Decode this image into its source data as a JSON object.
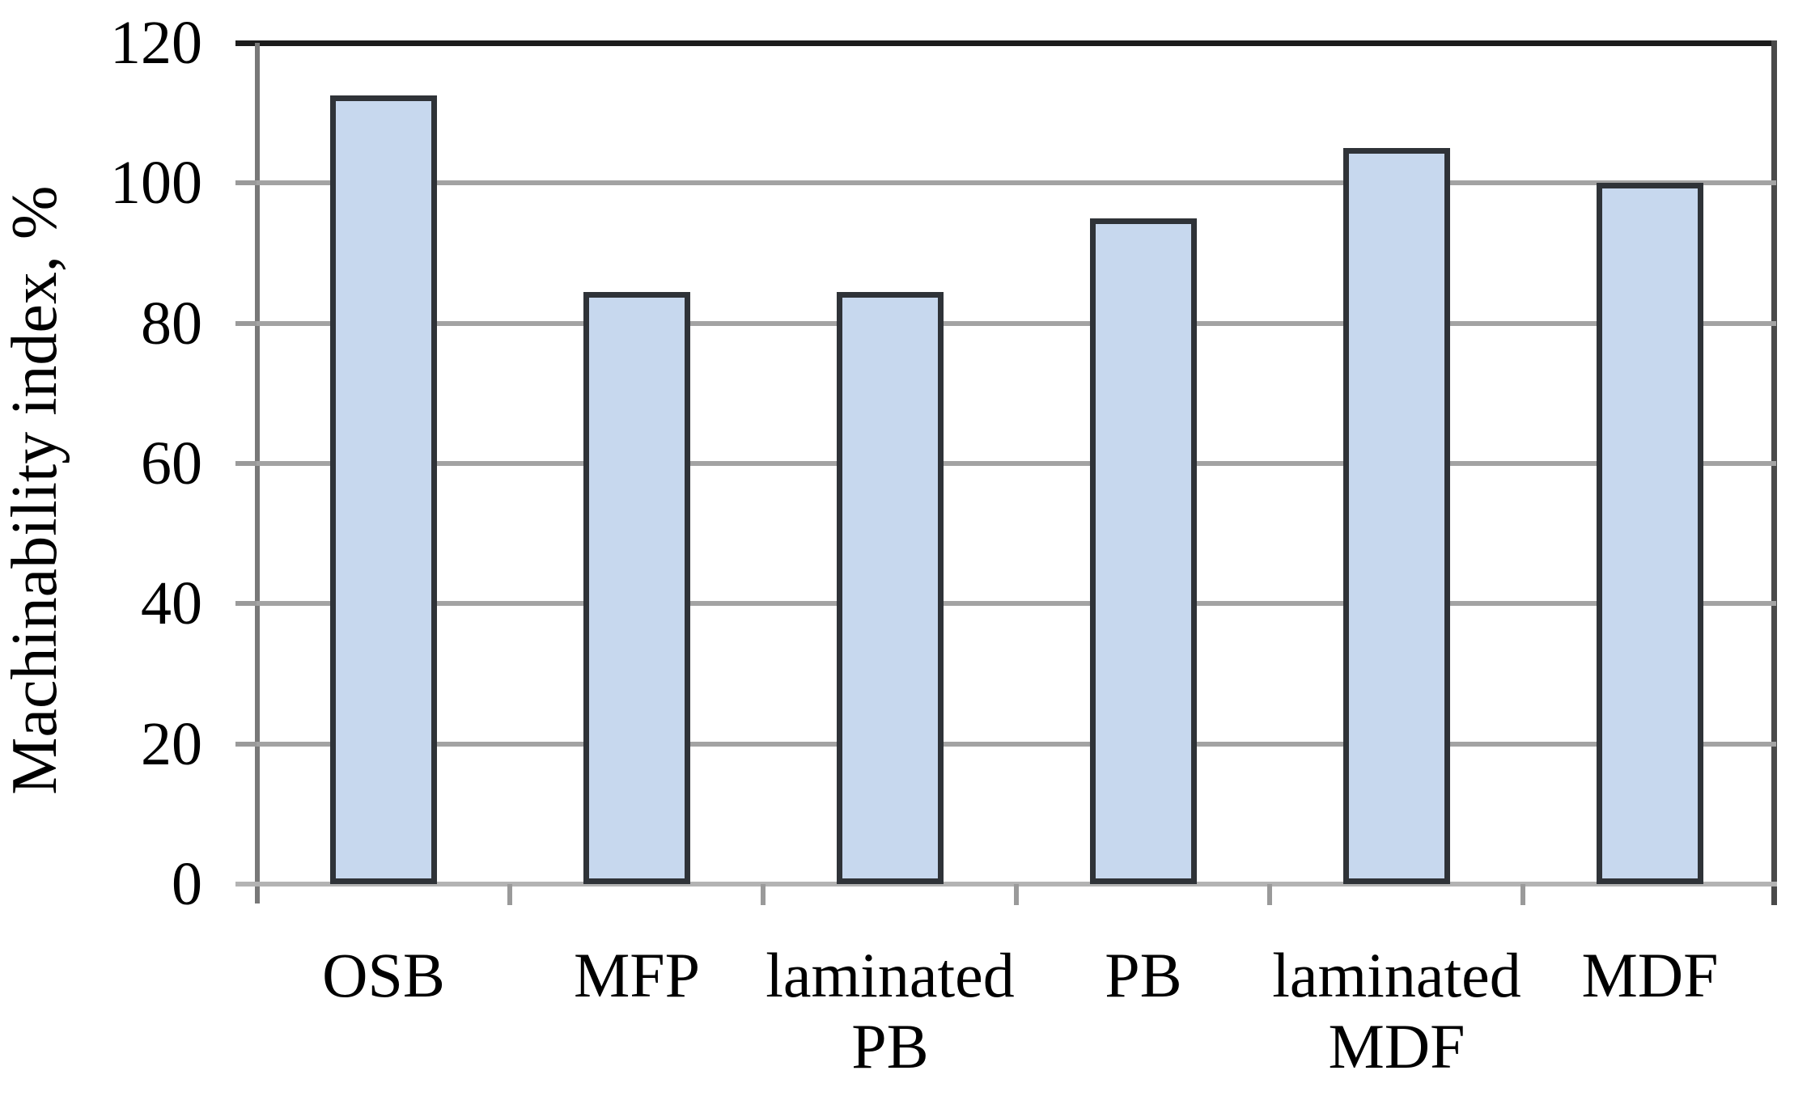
{
  "chart_data": {
    "type": "bar",
    "title": "",
    "ylabel": "Machinability index, %",
    "xlabel": "",
    "categories": [
      "OSB",
      "MFP",
      "laminated\nPB",
      "PB",
      "laminated\nMDF",
      "MDF"
    ],
    "values": [
      112.5,
      84.5,
      84.5,
      95,
      105,
      100
    ],
    "ylim": [
      0,
      120
    ],
    "yticks": [
      0,
      20,
      40,
      60,
      80,
      100,
      120
    ],
    "grid": true,
    "legend": "none",
    "colors": {
      "bar_fill": "#c7d8ee",
      "bar_border": "#2f3338",
      "gridline": "#a3a3a3",
      "axis_line": "#787878",
      "top_border": "#1c1c1c",
      "right_border": "#4a4a4a",
      "baseline": "#b3b3b3",
      "tick": "#9a9a9a",
      "text": "#000000",
      "background": "#ffffff"
    }
  }
}
